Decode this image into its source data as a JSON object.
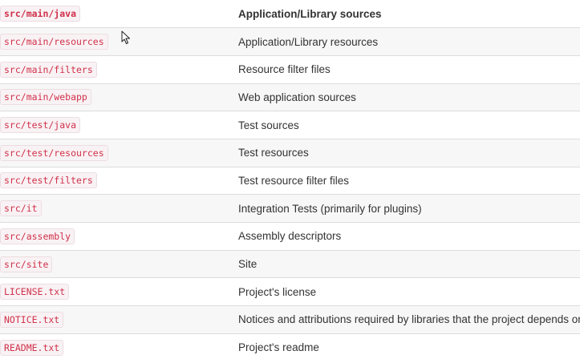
{
  "header": {
    "path": "src/main/java",
    "description": "Application/Library sources"
  },
  "rows": [
    {
      "path": "src/main/resources",
      "description": "Application/Library resources"
    },
    {
      "path": "src/main/filters",
      "description": "Resource filter files"
    },
    {
      "path": "src/main/webapp",
      "description": "Web application sources"
    },
    {
      "path": "src/test/java",
      "description": "Test sources"
    },
    {
      "path": "src/test/resources",
      "description": "Test resources"
    },
    {
      "path": "src/test/filters",
      "description": "Test resource filter files"
    },
    {
      "path": "src/it",
      "description": "Integration Tests (primarily for plugins)"
    },
    {
      "path": "src/assembly",
      "description": "Assembly descriptors"
    },
    {
      "path": "src/site",
      "description": "Site"
    },
    {
      "path": "LICENSE.txt",
      "description": "Project's license"
    },
    {
      "path": "NOTICE.txt",
      "description": "Notices and attributions required by libraries that the project depends on"
    },
    {
      "path": "README.txt",
      "description": "Project's readme"
    }
  ],
  "colors": {
    "code_text": "#d0304a",
    "code_background": "#f9f2f4",
    "row_stripe": "#f7f7f7",
    "text": "#333333"
  },
  "icons": {
    "cursor": "mouse-pointer-icon"
  }
}
